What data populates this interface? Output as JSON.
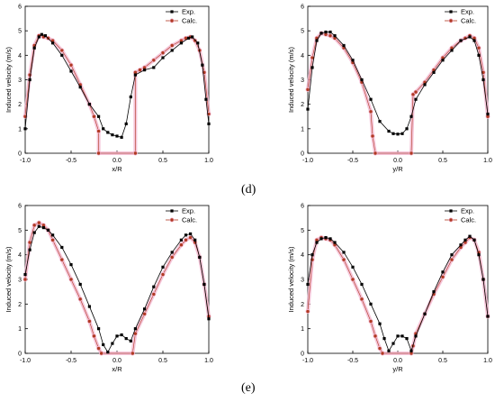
{
  "panel_labels": {
    "top": "(d)",
    "bottom": "(e)"
  },
  "colors": {
    "exp": "#000000",
    "calc_fill": "#b03a22",
    "calc_halo": "#f2b6cf",
    "axis": "#000000"
  },
  "chart_data": [
    {
      "type": "scatter",
      "id": "top-left",
      "title": "",
      "xlabel": "x/R",
      "ylabel": "Induced velocity (m/s)",
      "xlim": [
        -1.0,
        1.0
      ],
      "ylim": [
        0,
        6
      ],
      "xticks": [
        "-1.0",
        "-0.5",
        "0.0",
        "0.5",
        "1.0"
      ],
      "yticks": [
        "0",
        "1",
        "2",
        "3",
        "4",
        "5",
        "6"
      ],
      "legend": {
        "placement": "top-right",
        "entries": [
          "Exp.",
          "Calc."
        ]
      },
      "series": [
        {
          "name": "Exp.",
          "x": [
            -1.0,
            -0.95,
            -0.9,
            -0.85,
            -0.82,
            -0.78,
            -0.7,
            -0.6,
            -0.5,
            -0.4,
            -0.3,
            -0.2,
            -0.15,
            -0.1,
            -0.05,
            0.0,
            0.05,
            0.1,
            0.15,
            0.2,
            0.3,
            0.4,
            0.5,
            0.6,
            0.7,
            0.78,
            0.82,
            0.88,
            0.93,
            0.97,
            1.0
          ],
          "y": [
            1.0,
            3.0,
            4.3,
            4.75,
            4.85,
            4.8,
            4.5,
            4.0,
            3.35,
            2.7,
            2.0,
            1.5,
            1.0,
            0.85,
            0.75,
            0.7,
            0.65,
            1.2,
            2.3,
            3.2,
            3.4,
            3.5,
            3.9,
            4.2,
            4.5,
            4.7,
            4.75,
            4.5,
            3.6,
            2.2,
            1.2
          ]
        },
        {
          "name": "Calc.",
          "x": [
            -1.0,
            -0.95,
            -0.9,
            -0.85,
            -0.8,
            -0.75,
            -0.7,
            -0.6,
            -0.5,
            -0.4,
            -0.3,
            -0.25,
            -0.2,
            -0.2,
            0.2,
            0.2,
            0.25,
            0.3,
            0.4,
            0.5,
            0.6,
            0.7,
            0.75,
            0.8,
            0.85,
            0.9,
            0.95,
            1.0
          ],
          "y": [
            1.5,
            3.2,
            4.4,
            4.8,
            4.75,
            4.7,
            4.6,
            4.2,
            3.6,
            2.8,
            2.0,
            1.5,
            0.9,
            0.0,
            0.0,
            3.3,
            3.4,
            3.5,
            3.8,
            4.1,
            4.4,
            4.6,
            4.7,
            4.75,
            4.6,
            4.2,
            3.3,
            1.6
          ]
        }
      ]
    },
    {
      "type": "scatter",
      "id": "top-right",
      "title": "",
      "xlabel": "y/R",
      "ylabel": "Induced velocity (m/s)",
      "xlim": [
        -1.0,
        1.0
      ],
      "ylim": [
        0,
        6
      ],
      "xticks": [
        "-1.0",
        "-0.5",
        "0.0",
        "0.5",
        "1.0"
      ],
      "yticks": [
        "0",
        "1",
        "2",
        "3",
        "4",
        "5",
        "6"
      ],
      "legend": {
        "placement": "top-right",
        "entries": [
          "Exp.",
          "Calc."
        ]
      },
      "series": [
        {
          "name": "Exp.",
          "x": [
            -1.0,
            -0.95,
            -0.9,
            -0.85,
            -0.8,
            -0.75,
            -0.7,
            -0.6,
            -0.5,
            -0.4,
            -0.3,
            -0.2,
            -0.1,
            -0.05,
            0.0,
            0.05,
            0.1,
            0.15,
            0.2,
            0.3,
            0.4,
            0.5,
            0.6,
            0.7,
            0.8,
            0.85,
            0.9,
            0.95,
            1.0
          ],
          "y": [
            1.8,
            3.5,
            4.6,
            4.9,
            4.95,
            4.95,
            4.8,
            4.4,
            3.8,
            3.0,
            2.2,
            1.3,
            0.9,
            0.8,
            0.78,
            0.8,
            1.0,
            1.5,
            2.2,
            2.8,
            3.3,
            3.8,
            4.2,
            4.6,
            4.75,
            4.6,
            4.0,
            3.0,
            1.6
          ]
        },
        {
          "name": "Calc.",
          "x": [
            -1.0,
            -0.95,
            -0.9,
            -0.85,
            -0.8,
            -0.75,
            -0.7,
            -0.6,
            -0.5,
            -0.4,
            -0.3,
            -0.28,
            -0.25,
            0.15,
            0.17,
            0.2,
            0.3,
            0.4,
            0.5,
            0.6,
            0.7,
            0.75,
            0.8,
            0.85,
            0.9,
            0.95,
            1.0
          ],
          "y": [
            2.6,
            3.9,
            4.7,
            4.9,
            4.85,
            4.8,
            4.7,
            4.3,
            3.7,
            2.9,
            1.7,
            0.7,
            0.0,
            0.0,
            2.4,
            2.5,
            2.9,
            3.4,
            3.9,
            4.3,
            4.6,
            4.7,
            4.8,
            4.7,
            4.3,
            3.3,
            1.5
          ]
        }
      ]
    },
    {
      "type": "scatter",
      "id": "bottom-left",
      "title": "",
      "xlabel": "x/R",
      "ylabel": "Induced velocity (m/s)",
      "xlim": [
        -1.0,
        1.0
      ],
      "ylim": [
        0,
        6
      ],
      "xticks": [
        "-1.0",
        "-0.5",
        "0.0",
        "0.5",
        "1.0"
      ],
      "yticks": [
        "0",
        "1",
        "2",
        "3",
        "4",
        "5",
        "6"
      ],
      "legend": {
        "placement": "top-right",
        "entries": [
          "Exp.",
          "Calc."
        ]
      },
      "series": [
        {
          "name": "Exp.",
          "x": [
            -1.0,
            -0.95,
            -0.9,
            -0.85,
            -0.8,
            -0.75,
            -0.7,
            -0.6,
            -0.5,
            -0.4,
            -0.3,
            -0.2,
            -0.15,
            -0.1,
            -0.05,
            0.0,
            0.05,
            0.1,
            0.15,
            0.2,
            0.3,
            0.4,
            0.5,
            0.6,
            0.7,
            0.75,
            0.8,
            0.85,
            0.9,
            0.95,
            1.0
          ],
          "y": [
            3.2,
            4.2,
            4.9,
            5.15,
            5.1,
            5.0,
            4.8,
            4.3,
            3.6,
            2.8,
            1.9,
            1.0,
            0.35,
            0.05,
            0.4,
            0.7,
            0.75,
            0.6,
            0.5,
            1.0,
            1.8,
            2.7,
            3.5,
            4.1,
            4.6,
            4.8,
            4.85,
            4.6,
            3.9,
            2.8,
            1.4
          ]
        },
        {
          "name": "Calc.",
          "x": [
            -1.0,
            -0.95,
            -0.9,
            -0.85,
            -0.8,
            -0.75,
            -0.7,
            -0.6,
            -0.5,
            -0.4,
            -0.3,
            -0.25,
            -0.2,
            -0.17,
            0.17,
            0.2,
            0.3,
            0.4,
            0.5,
            0.6,
            0.7,
            0.75,
            0.8,
            0.85,
            0.9,
            0.95,
            1.0
          ],
          "y": [
            3.0,
            4.5,
            5.2,
            5.3,
            5.2,
            5.0,
            4.6,
            3.8,
            3.0,
            2.2,
            1.3,
            0.7,
            0.2,
            0.0,
            0.0,
            0.8,
            1.6,
            2.4,
            3.2,
            3.9,
            4.4,
            4.6,
            4.7,
            4.5,
            3.9,
            2.8,
            1.5
          ]
        }
      ]
    },
    {
      "type": "scatter",
      "id": "bottom-right",
      "title": "",
      "xlabel": "y/R",
      "ylabel": "Induced velocity (m/s)",
      "xlim": [
        -1.0,
        1.0
      ],
      "ylim": [
        0,
        6
      ],
      "xticks": [
        "-1.0",
        "-0.5",
        "0.0",
        "0.5",
        "1.0"
      ],
      "yticks": [
        "0",
        "1",
        "2",
        "3",
        "4",
        "5",
        "6"
      ],
      "legend": {
        "placement": "top-right",
        "entries": [
          "Exp.",
          "Calc."
        ]
      },
      "series": [
        {
          "name": "Exp.",
          "x": [
            -1.0,
            -0.95,
            -0.9,
            -0.85,
            -0.8,
            -0.75,
            -0.7,
            -0.6,
            -0.5,
            -0.4,
            -0.3,
            -0.2,
            -0.15,
            -0.1,
            -0.05,
            0.0,
            0.05,
            0.1,
            0.15,
            0.2,
            0.3,
            0.4,
            0.5,
            0.6,
            0.7,
            0.75,
            0.8,
            0.85,
            0.9,
            0.95,
            1.0
          ],
          "y": [
            2.8,
            4.0,
            4.5,
            4.65,
            4.7,
            4.65,
            4.5,
            4.1,
            3.5,
            2.8,
            2.0,
            1.2,
            0.6,
            0.1,
            0.4,
            0.7,
            0.7,
            0.6,
            0.1,
            0.7,
            1.6,
            2.5,
            3.3,
            4.0,
            4.4,
            4.6,
            4.75,
            4.6,
            4.0,
            3.0,
            1.5
          ]
        },
        {
          "name": "Calc.",
          "x": [
            -1.0,
            -0.95,
            -0.9,
            -0.85,
            -0.8,
            -0.75,
            -0.7,
            -0.6,
            -0.5,
            -0.4,
            -0.3,
            -0.25,
            -0.2,
            -0.17,
            0.15,
            0.17,
            0.2,
            0.3,
            0.4,
            0.5,
            0.6,
            0.7,
            0.75,
            0.8,
            0.85,
            0.9,
            0.95,
            1.0
          ],
          "y": [
            1.7,
            3.8,
            4.6,
            4.7,
            4.65,
            4.6,
            4.4,
            3.8,
            3.0,
            2.2,
            1.3,
            0.7,
            0.2,
            0.0,
            0.0,
            0.3,
            0.8,
            1.6,
            2.4,
            3.1,
            3.8,
            4.3,
            4.5,
            4.7,
            4.6,
            4.1,
            3.0,
            1.5
          ]
        }
      ]
    }
  ]
}
